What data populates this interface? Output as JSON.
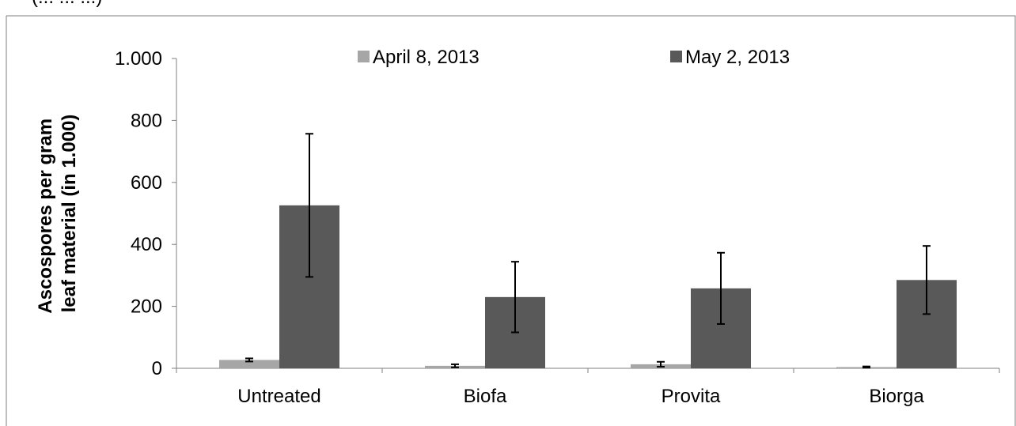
{
  "header_fragment": "(... ... ...)",
  "chart_data": {
    "type": "bar",
    "categories": [
      "Untreated",
      "Biofa",
      "Provita",
      "Biorga"
    ],
    "series": [
      {
        "name": "April 8, 2013",
        "color": "#a6a6a6",
        "values": [
          27,
          8,
          13,
          4
        ],
        "errors": [
          5,
          5,
          8,
          2
        ]
      },
      {
        "name": "May 2, 2013",
        "color": "#595959",
        "values": [
          526,
          230,
          258,
          285
        ],
        "errors": [
          231,
          114,
          115,
          110
        ]
      }
    ],
    "ylabel_lines": [
      "Ascospores per gram",
      "leaf material (in 1.000)"
    ],
    "ylim": [
      0,
      1000
    ],
    "yticks": [
      0,
      200,
      400,
      600,
      800,
      1000
    ],
    "ytick_labels": [
      "0",
      "200",
      "400",
      "600",
      "800",
      "1.000"
    ],
    "legend_position": "top",
    "grid": false
  }
}
